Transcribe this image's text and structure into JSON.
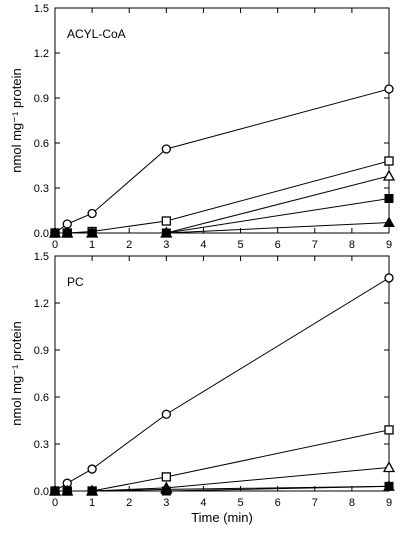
{
  "chart_data": [
    {
      "type": "line",
      "title": "ACYL-CoA",
      "xlabel": "",
      "ylabel": "nmol mg⁻¹ protein",
      "xlim": [
        0,
        9
      ],
      "ylim": [
        0,
        1.5
      ],
      "x_ticks": [
        "0",
        "1",
        "2",
        "3",
        "4",
        "5",
        "6",
        "7",
        "8",
        "9"
      ],
      "y_ticks": [
        "0.0",
        "0.3",
        "0.6",
        "0.9",
        "1.2",
        "1.5"
      ],
      "grid": false,
      "legend": "none",
      "x": [
        0,
        0.33,
        1,
        3,
        9
      ],
      "series": [
        {
          "marker": "open-circle",
          "values": [
            0.0,
            0.06,
            0.13,
            0.56,
            0.96
          ]
        },
        {
          "marker": "open-square",
          "values": [
            0.0,
            0.0,
            0.01,
            0.08,
            0.48
          ]
        },
        {
          "marker": "open-triangle",
          "values": [
            0.0,
            0.0,
            0.0,
            0.0,
            0.38
          ]
        },
        {
          "marker": "filled-square",
          "values": [
            0.0,
            0.0,
            0.0,
            0.0,
            0.23
          ]
        },
        {
          "marker": "filled-triangle",
          "values": [
            0.0,
            0.0,
            0.0,
            0.0,
            0.07
          ]
        }
      ]
    },
    {
      "type": "line",
      "title": "PC",
      "xlabel": "Time (min)",
      "ylabel": "nmol mg⁻¹ protein",
      "xlim": [
        0,
        9
      ],
      "ylim": [
        0,
        1.5
      ],
      "x_ticks": [
        "0",
        "1",
        "2",
        "3",
        "4",
        "5",
        "6",
        "7",
        "8",
        "9"
      ],
      "y_ticks": [
        "0.0",
        "0.3",
        "0.6",
        "0.9",
        "1.2",
        "1.5"
      ],
      "grid": false,
      "legend": "none",
      "x": [
        0,
        0.33,
        1,
        3,
        9
      ],
      "series": [
        {
          "marker": "open-circle",
          "values": [
            0.0,
            0.05,
            0.14,
            0.49,
            1.36
          ]
        },
        {
          "marker": "open-square",
          "values": [
            0.0,
            0.0,
            0.0,
            0.09,
            0.39
          ]
        },
        {
          "marker": "open-triangle",
          "values": [
            0.0,
            0.0,
            0.0,
            0.02,
            0.15
          ]
        },
        {
          "marker": "filled-square",
          "values": [
            0.0,
            0.0,
            0.0,
            0.0,
            0.03
          ]
        },
        {
          "marker": "filled-triangle",
          "values": [
            0.0,
            0.0,
            0.0,
            0.01,
            0.03
          ]
        }
      ]
    }
  ]
}
